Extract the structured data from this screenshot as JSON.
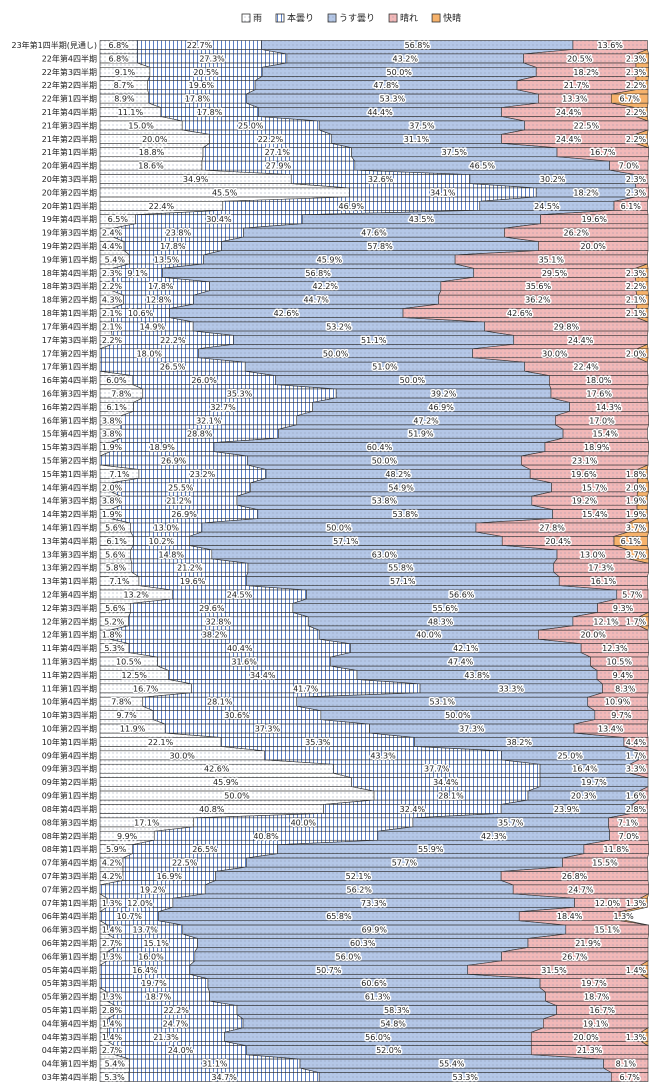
{
  "chart_data": {
    "type": "stacked-band-bar",
    "xlim": [
      0,
      100
    ],
    "categories": [
      "23年第1四半期(見通し)",
      "22年第4四半期",
      "22年第3四半期",
      "22年第2四半期",
      "22年第1四半期",
      "21年第4四半期",
      "21年第3四半期",
      "21年第2四半期",
      "21年第1四半期",
      "20年第4四半期",
      "20年第3四半期",
      "20年第2四半期",
      "20年第1四半期",
      "19年第4四半期",
      "19年第3四半期",
      "19年第2四半期",
      "19年第1四半期",
      "18年第4四半期",
      "18年第3四半期",
      "18年第2四半期",
      "18年第1四半期",
      "17年第4四半期",
      "17年第3四半期",
      "17年第2四半期",
      "17年第1四半期",
      "16年第4四半期",
      "16年第3四半期",
      "16年第2四半期",
      "16年第1四半期",
      "15年第4四半期",
      "15年第3四半期",
      "15年第2四半期",
      "15年第1四半期",
      "14年第4四半期",
      "14年第3四半期",
      "14年第2四半期",
      "14年第1四半期",
      "13年第4四半期",
      "13年第3四半期",
      "13年第2四半期",
      "13年第1四半期",
      "12年第4四半期",
      "12年第3四半期",
      "12年第2四半期",
      "12年第1四半期",
      "11年第4四半期",
      "11年第3四半期",
      "11年第2四半期",
      "11年第1四半期",
      "10年第4四半期",
      "10年第3四半期",
      "10年第2四半期",
      "10年第1四半期",
      "09年第4四半期",
      "09年第3四半期",
      "09年第2四半期",
      "09年第1四半期",
      "08年第4四半期",
      "08年第3四半期",
      "08年第2四半期",
      "08年第1四半期",
      "07年第4四半期",
      "07年第3四半期",
      "07年第2四半期",
      "07年第1四半期",
      "06年第4四半期",
      "06年第3四半期",
      "06年第2四半期",
      "06年第1四半期",
      "05年第4四半期",
      "05年第3四半期",
      "05年第2四半期",
      "05年第1四半期",
      "04年第4四半期",
      "04年第3四半期",
      "04年第2四半期",
      "04年第1四半期",
      "03年第4四半期"
    ],
    "series": [
      {
        "name": "雨",
        "color": "#ffffff",
        "values": [
          6.8,
          6.8,
          9.1,
          8.7,
          8.9,
          11.1,
          15.0,
          20.0,
          18.8,
          18.6,
          34.9,
          45.5,
          22.4,
          6.5,
          2.4,
          4.4,
          5.4,
          2.3,
          2.2,
          4.3,
          2.1,
          2.1,
          2.2,
          null,
          null,
          6.0,
          7.8,
          6.1,
          3.8,
          3.8,
          1.9,
          null,
          7.1,
          2.0,
          3.8,
          1.9,
          5.6,
          6.1,
          5.6,
          5.8,
          7.1,
          13.2,
          5.6,
          5.2,
          1.8,
          5.3,
          10.5,
          12.5,
          16.7,
          7.8,
          9.7,
          11.9,
          22.1,
          30.0,
          42.6,
          45.9,
          50.0,
          40.8,
          17.1,
          9.9,
          5.9,
          4.2,
          4.2,
          null,
          1.3,
          null,
          1.4,
          2.7,
          1.3,
          null,
          null,
          1.3,
          2.8,
          1.4,
          1.4,
          2.7,
          5.4,
          5.3
        ],
        "value_labels": [
          "6.8%",
          "6.8%",
          "9.1%",
          "8.7%",
          "8.9%",
          "11.1%",
          "15.0%",
          "20.0%",
          "18.8%",
          "18.6%",
          "34.9%",
          "45.5%",
          "22.4%",
          "6.5%",
          "2.4%",
          "4.4%",
          "5.4%",
          "2.3%",
          "2.2%",
          "4.3%",
          "2.1%",
          "2.1%",
          "2.2%",
          null,
          null,
          "6.0%",
          "7.8%",
          "6.1%",
          "3.8%",
          "3.8%",
          "1.9%",
          null,
          "7.1%",
          "2.0%",
          "3.8%",
          "1.9%",
          "5.6%",
          "6.1%",
          "5.6%",
          "5.8%",
          "7.1%",
          "13.2%",
          "5.6%",
          "5.2%",
          "1.8%",
          "5.3%",
          "10.5%",
          "12.5%",
          "16.7%",
          "7.8%",
          "9.7%",
          "11.9%",
          "22.1%",
          "30.0%",
          "42.6%",
          "45.9%",
          "50.0%",
          "40.8%",
          "17.1%",
          "9.9%",
          "5.9%",
          "4.2%",
          "4.2%",
          null,
          "1.3%",
          null,
          "1.4%",
          "2.7%",
          "1.3%",
          null,
          null,
          "1.3%",
          "2.8%",
          "1.4%",
          "1.4%",
          "2.7%",
          "5.4%",
          "5.3%"
        ]
      },
      {
        "name": "本曇り",
        "color": "#5b7fc4",
        "values": [
          22.7,
          27.3,
          20.5,
          19.6,
          17.8,
          17.8,
          25.0,
          22.2,
          27.1,
          27.9,
          32.6,
          34.1,
          46.9,
          30.4,
          23.8,
          17.8,
          13.5,
          9.1,
          17.8,
          12.8,
          10.6,
          14.9,
          22.2,
          18.0,
          26.5,
          26.0,
          35.3,
          32.7,
          32.1,
          28.8,
          18.9,
          26.9,
          23.2,
          25.5,
          21.2,
          26.9,
          13.0,
          10.2,
          14.8,
          21.2,
          19.6,
          24.5,
          29.6,
          32.8,
          38.2,
          40.4,
          31.6,
          34.4,
          41.7,
          28.1,
          30.6,
          37.3,
          35.3,
          43.3,
          37.7,
          34.4,
          28.1,
          32.4,
          40.0,
          40.8,
          26.5,
          22.5,
          16.9,
          19.2,
          12.0,
          10.7,
          13.7,
          15.1,
          16.0,
          16.4,
          19.7,
          18.7,
          22.2,
          24.7,
          21.3,
          24.0,
          31.1,
          34.7
        ],
        "value_labels": [
          "22.7%",
          "27.3%",
          "20.5%",
          "19.6%",
          "17.8%",
          "17.8%",
          "25.0%",
          "22.2%",
          "27.1%",
          "27.9%",
          "32.6%",
          "34.1%",
          "46.9%",
          "30.4%",
          "23.8%",
          "17.8%",
          "13.5%",
          "9.1%",
          "17.8%",
          "12.8%",
          "10.6%",
          "14.9%",
          "22.2%",
          "18.0%",
          "26.5%",
          "26.0%",
          "35.3%",
          "32.7%",
          "32.1%",
          "28.8%",
          "18.9%",
          "26.9%",
          "23.2%",
          "25.5%",
          "21.2%",
          "26.9%",
          "13.0%",
          "10.2%",
          "14.8%",
          "21.2%",
          "19.6%",
          "24.5%",
          "29.6%",
          "32.8%",
          "38.2%",
          "40.4%",
          "31.6%",
          "34.4%",
          "41.7%",
          "28.1%",
          "30.6%",
          "37.3%",
          "35.3%",
          "43.3%",
          "37.7%",
          "34.4%",
          "28.1%",
          "32.4%",
          "40.0%",
          "40.8%",
          "26.5%",
          "22.5%",
          "16.9%",
          "19.2%",
          "12.0%",
          "10.7%",
          "13.7%",
          "15.1%",
          "16.0%",
          "16.4%",
          "19.7%",
          "18.7%",
          "22.2%",
          "24.7%",
          "21.3%",
          "24.0%",
          "31.1%",
          "34.7%"
        ]
      },
      {
        "name": "うす曇り",
        "color": "#b4c7e7",
        "values": [
          56.8,
          43.2,
          50.0,
          47.8,
          53.3,
          44.4,
          37.5,
          31.1,
          37.5,
          46.5,
          30.2,
          18.2,
          24.5,
          43.5,
          47.6,
          57.8,
          45.9,
          56.8,
          42.2,
          44.7,
          42.6,
          53.2,
          51.1,
          50.0,
          51.0,
          50.0,
          39.2,
          46.9,
          47.2,
          51.9,
          60.4,
          50.0,
          48.2,
          54.9,
          53.8,
          53.8,
          50.0,
          57.1,
          63.0,
          55.8,
          57.1,
          56.6,
          55.6,
          48.3,
          40.0,
          42.1,
          47.4,
          43.8,
          33.3,
          53.1,
          50.0,
          37.3,
          38.2,
          25.0,
          16.4,
          19.7,
          20.3,
          23.9,
          35.7,
          42.3,
          55.9,
          57.7,
          52.1,
          56.2,
          73.3,
          65.8,
          69.9,
          60.3,
          56.0,
          50.7,
          60.6,
          61.3,
          58.3,
          54.8,
          56.0,
          52.0,
          55.4,
          53.3
        ],
        "value_labels": [
          "56.8%",
          "43.2%",
          "50.0%",
          "47.8%",
          "53.3%",
          "44.4%",
          "37.5%",
          "31.1%",
          "37.5%",
          "46.5%",
          "30.2%",
          "18.2%",
          "24.5%",
          "43.5%",
          "47.6%",
          "57.8%",
          "45.9%",
          "56.8%",
          "42.2%",
          "44.7%",
          "42.6%",
          "53.2%",
          "51.1%",
          "50.0%",
          "51.0%",
          "50.0%",
          "39.2%",
          "46.9%",
          "47.2%",
          "51.9%",
          "60.4%",
          "50.0%",
          "48.2%",
          "54.9%",
          "53.8%",
          "53.8%",
          "50.0%",
          "57.1%",
          "63.0%",
          "55.8%",
          "57.1%",
          "56.6%",
          "55.6%",
          "48.3%",
          "40.0%",
          "42.1%",
          "47.4%",
          "43.8%",
          "33.3%",
          "53.1%",
          "50.0%",
          "37.3%",
          "38.2%",
          "25.0%",
          "16.4%",
          "19.7%",
          "20.3%",
          "23.9%",
          "35.7%",
          "42.3%",
          "55.9%",
          "57.7%",
          "52.1%",
          "56.2%",
          "73.3%",
          "65.8%",
          "69.9%",
          "60.3%",
          "56.0%",
          "50.7%",
          "60.6%",
          "61.3%",
          "58.3%",
          "54.8%",
          "56.0%",
          "52.0%",
          "55.4%",
          "53.3%"
        ]
      },
      {
        "name": "晴れ",
        "color": "#f2b8b8",
        "values": [
          13.6,
          20.5,
          18.2,
          21.7,
          13.3,
          24.4,
          22.5,
          24.4,
          16.7,
          7.0,
          2.3,
          2.3,
          6.1,
          19.6,
          26.2,
          20.0,
          35.1,
          29.5,
          35.6,
          36.2,
          42.6,
          29.8,
          24.4,
          30.0,
          22.4,
          18.0,
          17.6,
          14.3,
          17.0,
          15.4,
          18.9,
          23.1,
          19.6,
          15.7,
          19.2,
          15.4,
          27.8,
          20.4,
          13.0,
          17.3,
          16.1,
          5.7,
          9.3,
          12.1,
          20.0,
          12.3,
          10.5,
          9.4,
          8.3,
          10.9,
          9.7,
          13.4,
          4.4,
          1.7,
          3.3,
          null,
          1.6,
          2.8,
          7.1,
          7.0,
          11.8,
          15.5,
          26.8,
          24.7,
          12.0,
          18.4,
          15.1,
          21.9,
          26.7,
          31.5,
          19.7,
          18.7,
          16.7,
          19.1,
          20.0,
          21.3,
          8.1,
          6.7
        ],
        "value_labels": [
          "13.6%",
          "20.5%",
          "18.2%",
          "21.7%",
          "13.3%",
          "24.4%",
          "22.5%",
          "24.4%",
          "16.7%",
          "7.0%",
          "2.3%",
          "2.3%",
          "6.1%",
          "19.6%",
          "26.2%",
          "20.0%",
          "35.1%",
          "29.5%",
          "35.6%",
          "36.2%",
          "42.6%",
          "29.8%",
          "24.4%",
          "30.0%",
          "22.4%",
          "18.0%",
          "17.6%",
          "14.3%",
          "17.0%",
          "15.4%",
          "18.9%",
          "23.1%",
          "19.6%",
          "15.7%",
          "19.2%",
          "15.4%",
          "27.8%",
          "20.4%",
          "13.0%",
          "17.3%",
          "16.1%",
          "5.7%",
          "9.3%",
          "12.1%",
          "20.0%",
          "12.3%",
          "10.5%",
          "9.4%",
          "8.3%",
          "10.9%",
          "9.7%",
          "13.4%",
          "4.4%",
          "1.7%",
          "3.3%",
          null,
          "1.6%",
          "2.8%",
          "7.1%",
          "7.0%",
          "11.8%",
          "15.5%",
          "26.8%",
          "24.7%",
          "12.0%",
          "18.4%",
          "15.1%",
          "21.9%",
          "26.7%",
          "31.5%",
          "19.7%",
          "18.7%",
          "16.7%",
          "19.1%",
          "20.0%",
          "21.3%",
          "8.1%",
          "6.7%"
        ]
      },
      {
        "name": "快晴",
        "color": "#f6b26b",
        "values": [
          null,
          2.3,
          2.3,
          2.2,
          6.7,
          2.2,
          null,
          2.2,
          null,
          null,
          null,
          null,
          null,
          null,
          null,
          null,
          null,
          2.3,
          2.2,
          2.1,
          2.1,
          null,
          null,
          2.0,
          null,
          null,
          null,
          null,
          null,
          null,
          null,
          null,
          1.8,
          2.0,
          1.9,
          1.9,
          3.7,
          6.1,
          3.7,
          null,
          null,
          null,
          null,
          1.7,
          null,
          null,
          null,
          null,
          null,
          null,
          null,
          null,
          null,
          null,
          null,
          null,
          null,
          null,
          null,
          null,
          null,
          null,
          null,
          null,
          1.3,
          1.3,
          null,
          null,
          null,
          1.4,
          null,
          null,
          null,
          null,
          1.3,
          null,
          null,
          null
        ],
        "value_labels": [
          null,
          "2.3%",
          "2.3%",
          "2.2%",
          "6.7%",
          "2.2%",
          null,
          "2.2%",
          null,
          null,
          null,
          null,
          null,
          null,
          null,
          null,
          null,
          "2.3%",
          "2.2%",
          "2.1%",
          "2.1%",
          null,
          null,
          "2.0%",
          null,
          null,
          null,
          null,
          null,
          null,
          null,
          null,
          "1.8%",
          "2.0%",
          "1.9%",
          "1.9%",
          "3.7%",
          "6.1%",
          "3.7%",
          null,
          null,
          null,
          null,
          "1.7%",
          null,
          null,
          null,
          null,
          null,
          null,
          null,
          null,
          null,
          null,
          null,
          null,
          null,
          null,
          null,
          null,
          null,
          null,
          null,
          null,
          "1.3%",
          "1.3%",
          null,
          null,
          null,
          "1.4%",
          null,
          null,
          null,
          null,
          "1.3%",
          null,
          null,
          null
        ]
      }
    ]
  }
}
